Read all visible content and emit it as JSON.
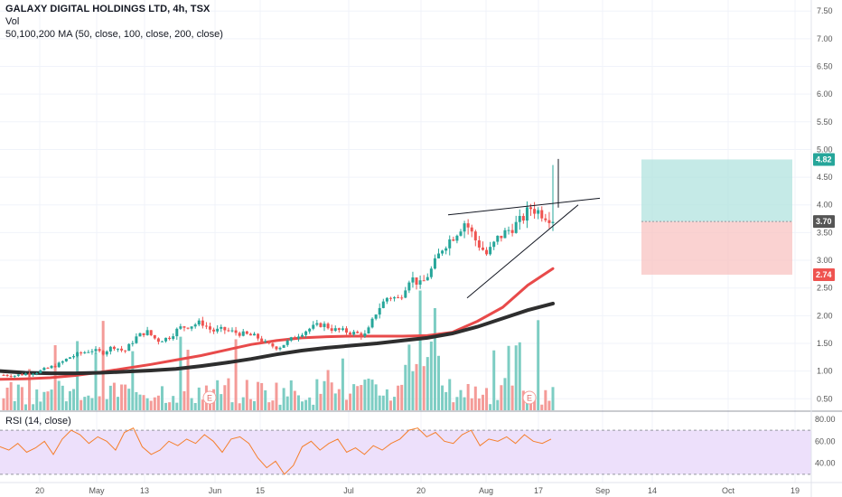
{
  "header": {
    "title": "GALAXY DIGITAL HOLDINGS LTD, 4h, TSX",
    "vol_label": "Vol",
    "ma_label": "50,100,200 MA (50, close, 100, close, 200, close)",
    "rsi_label": "RSI (14, close)"
  },
  "chart_data": {
    "type": "candlestick",
    "symbol": "GALAXY DIGITAL HOLDINGS LTD",
    "interval": "4h",
    "exchange": "TSX",
    "price_axis": {
      "ticks": [
        "7.50",
        "7.00",
        "6.50",
        "6.00",
        "5.50",
        "5.00",
        "4.50",
        "4.00",
        "3.50",
        "3.00",
        "2.50",
        "2.00",
        "1.50",
        "1.00",
        "0.50"
      ],
      "range": [
        0.3,
        7.6
      ]
    },
    "time_axis": {
      "ticks": [
        "20",
        "May",
        "13",
        "Jun",
        "15",
        "Jul",
        "20",
        "Aug",
        "17",
        "Sep",
        "14",
        "Oct",
        "19"
      ]
    },
    "price_path": [
      0.93,
      0.92,
      0.95,
      0.98,
      1.05,
      1.12,
      1.25,
      1.32,
      1.38,
      1.33,
      1.45,
      1.35,
      1.6,
      1.72,
      1.55,
      1.6,
      1.78,
      1.82,
      1.88,
      1.72,
      1.75,
      1.7,
      1.66,
      1.62,
      1.48,
      1.42,
      1.55,
      1.68,
      1.78,
      1.85,
      1.75,
      1.72,
      1.68,
      1.65,
      2.1,
      2.35,
      2.3,
      2.7,
      2.55,
      2.85,
      3.25,
      3.45,
      3.7,
      3.35,
      3.1,
      3.4,
      3.55,
      3.7,
      3.95,
      3.85,
      3.75
    ],
    "moving_averages": [
      {
        "name": "MA 50",
        "color": "#e84a4a",
        "values": [
          0.85,
          0.86,
          0.88,
          0.92,
          0.98,
          1.05,
          1.12,
          1.2,
          1.28,
          1.38,
          1.48,
          1.55,
          1.6,
          1.62,
          1.63,
          1.63,
          1.63,
          1.64,
          1.7,
          1.9,
          2.15,
          2.55,
          2.85
        ]
      },
      {
        "name": "MA 100",
        "color": "#2e2e2e",
        "values": [
          1.0,
          0.97,
          0.96,
          0.96,
          0.97,
          0.99,
          1.01,
          1.04,
          1.09,
          1.15,
          1.22,
          1.3,
          1.37,
          1.42,
          1.46,
          1.5,
          1.55,
          1.6,
          1.68,
          1.8,
          1.95,
          2.1,
          2.22
        ]
      }
    ],
    "annotations": {
      "wedge_upper": [
        [
          3.82,
          3.82
        ],
        [
          4.12,
          4.12
        ]
      ],
      "wedge_lower": [
        [
          2.32
        ],
        [
          4.0
        ]
      ],
      "target_price": "4.82",
      "entry_price": "3.70",
      "stop_price": "2.74",
      "earnings_markers": [
        "E",
        "E"
      ]
    },
    "volume": {
      "unit": "relative",
      "note": "volume bars colored by candle direction"
    },
    "rsi": {
      "ticks": [
        "80.00",
        "60.00",
        "40.00"
      ],
      "overbought": 70,
      "oversold": 30,
      "values": [
        55,
        52,
        58,
        50,
        54,
        60,
        48,
        62,
        70,
        66,
        58,
        64,
        60,
        52,
        68,
        72,
        55,
        48,
        52,
        60,
        56,
        62,
        58,
        66,
        60,
        50,
        62,
        64,
        58,
        45,
        36,
        42,
        30,
        38,
        55,
        60,
        52,
        58,
        62,
        50,
        54,
        48,
        56,
        52,
        58,
        62,
        70,
        72,
        64,
        68,
        60,
        58,
        66,
        70,
        56,
        62,
        60,
        64,
        58,
        66,
        60,
        58,
        62
      ]
    },
    "grid": true
  },
  "colors": {
    "up": "#26a69a",
    "down": "#ef5350",
    "up_vol": "#7dcdc3",
    "down_vol": "#f49b98",
    "ma50": "#e84a4a",
    "ma100": "#2e2e2e",
    "target_zone": "#b2e3df",
    "stop_zone": "#f8c3c1",
    "rsi_line": "#f57f2c",
    "rsi_band": "#ede0fb",
    "price_badge_green": "#26a69a",
    "price_badge_grey": "#555555",
    "price_badge_red": "#ef5350"
  }
}
